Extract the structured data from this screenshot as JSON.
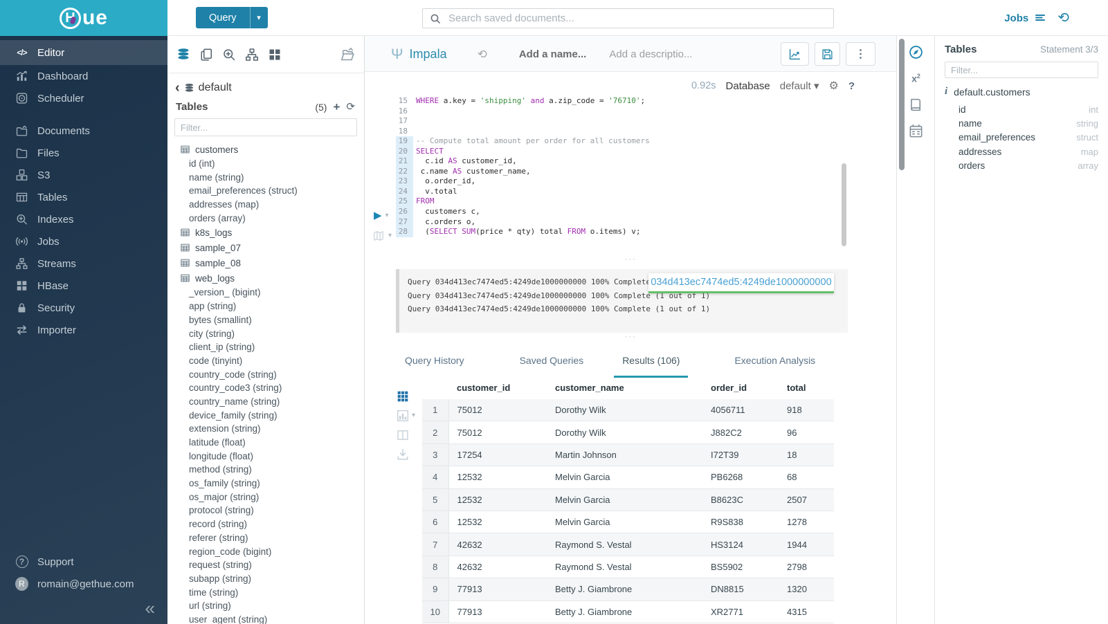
{
  "brand": {
    "logo_text": "ue"
  },
  "topbar": {
    "query_button": "Query",
    "search_placeholder": "Search saved documents...",
    "jobs_label": "Jobs"
  },
  "sidebar": {
    "items": [
      {
        "label": "Editor",
        "icon": "code-icon",
        "active": true
      },
      {
        "label": "Dashboard",
        "icon": "dashboard-icon"
      },
      {
        "label": "Scheduler",
        "icon": "scheduler-icon"
      },
      {
        "label": "Documents",
        "icon": "documents-icon",
        "group_start": true
      },
      {
        "label": "Files",
        "icon": "files-icon"
      },
      {
        "label": "S3",
        "icon": "s3-icon"
      },
      {
        "label": "Tables",
        "icon": "tables-icon"
      },
      {
        "label": "Indexes",
        "icon": "indexes-icon"
      },
      {
        "label": "Jobs",
        "icon": "jobs-icon"
      },
      {
        "label": "Streams",
        "icon": "streams-icon"
      },
      {
        "label": "HBase",
        "icon": "hbase-icon"
      },
      {
        "label": "Security",
        "icon": "security-icon"
      },
      {
        "label": "Importer",
        "icon": "importer-icon"
      }
    ],
    "footer": [
      {
        "label": "Support",
        "icon": "help-icon"
      },
      {
        "label": "romain@gethue.com",
        "icon": "avatar-icon"
      }
    ],
    "collapse_glyph": "«"
  },
  "left_assist": {
    "toolbar": [
      "database-icon",
      "copy-icon",
      "search-plus-icon",
      "sitemap-icon",
      "grid-icon"
    ],
    "toolbar_right": "folder-open-icon",
    "db_name": "default",
    "tables_label": "Tables",
    "table_count": "(5)",
    "filter_placeholder": "Filter...",
    "tree": [
      {
        "name": "customers",
        "columns": [
          "id (int)",
          "name (string)",
          "email_preferences (struct)",
          "addresses (map)",
          "orders (array)"
        ]
      },
      {
        "name": "k8s_logs",
        "columns": []
      },
      {
        "name": "sample_07",
        "columns": []
      },
      {
        "name": "sample_08",
        "columns": []
      },
      {
        "name": "web_logs",
        "columns": [
          "_version_ (bigint)",
          "app (string)",
          "bytes (smallint)",
          "city (string)",
          "client_ip (string)",
          "code (tinyint)",
          "country_code (string)",
          "country_code3 (string)",
          "country_name (string)",
          "device_family (string)",
          "extension (string)",
          "latitude (float)",
          "longitude (float)",
          "method (string)",
          "os_family (string)",
          "os_major (string)",
          "protocol (string)",
          "record (string)",
          "referer (string)",
          "region_code (bigint)",
          "request (string)",
          "subapp (string)",
          "time (string)",
          "url (string)",
          "user_agent (string)"
        ]
      }
    ]
  },
  "editor": {
    "engine": "Impala",
    "name_placeholder": "Add a name...",
    "description_placeholder": "Add a descriptio...",
    "buttons": [
      "chart-icon",
      "save-icon",
      "kebab-icon"
    ],
    "exec_time": "0.92s",
    "database_label": "Database",
    "database_value": "default",
    "highlight_from_line": 19,
    "code": [
      {
        "num": 15,
        "segs": [
          {
            "t": "WHERE",
            "c": "kw"
          },
          {
            "t": " a.key = "
          },
          {
            "t": "'shipping'",
            "c": "str"
          },
          {
            "t": " "
          },
          {
            "t": "and",
            "c": "kw"
          },
          {
            "t": " a.zip_code = "
          },
          {
            "t": "'76710'",
            "c": "str"
          },
          {
            "t": ";"
          }
        ]
      },
      {
        "num": 16,
        "segs": []
      },
      {
        "num": 17,
        "segs": []
      },
      {
        "num": 18,
        "segs": []
      },
      {
        "num": 19,
        "segs": [
          {
            "t": "-- Compute total amount per order for all customers",
            "c": "cmt"
          }
        ]
      },
      {
        "num": 20,
        "segs": [
          {
            "t": "SELECT",
            "c": "kw"
          }
        ]
      },
      {
        "num": 21,
        "segs": [
          {
            "t": "  c.id "
          },
          {
            "t": "AS",
            "c": "kw"
          },
          {
            "t": " customer_id,"
          }
        ]
      },
      {
        "num": 22,
        "segs": [
          {
            "t": " c.name "
          },
          {
            "t": "AS",
            "c": "kw"
          },
          {
            "t": " customer_name,"
          }
        ]
      },
      {
        "num": 23,
        "segs": [
          {
            "t": "  o.order_id,"
          }
        ]
      },
      {
        "num": 24,
        "segs": [
          {
            "t": "  v.total"
          }
        ]
      },
      {
        "num": 25,
        "segs": [
          {
            "t": "FROM",
            "c": "kw"
          }
        ]
      },
      {
        "num": 26,
        "segs": [
          {
            "t": "  customers c,"
          }
        ]
      },
      {
        "num": 27,
        "segs": [
          {
            "t": "  c.orders o,"
          }
        ]
      },
      {
        "num": 28,
        "segs": [
          {
            "t": "  ("
          },
          {
            "t": "SELECT",
            "c": "kw"
          },
          {
            "t": " "
          },
          {
            "t": "SUM",
            "c": "kw"
          },
          {
            "t": "(price * qty) total "
          },
          {
            "t": "FROM",
            "c": "kw"
          },
          {
            "t": " o.items) v;"
          }
        ]
      }
    ]
  },
  "log": {
    "lines": [
      "Query 034d413ec7474ed5:4249de1000000000 100% Complete (1 out of 1)",
      "Query 034d413ec7474ed5:4249de1000000000 100% Complete (1 out of 1)",
      "Query 034d413ec7474ed5:4249de1000000000 100% Complete (1 out of 1)"
    ],
    "tooltip": "034d413ec7474ed5:4249de1000000000"
  },
  "results_tabs": {
    "items": [
      "Query History",
      "Saved Queries",
      "Results (106)",
      "Execution Analysis"
    ],
    "active_index": 2
  },
  "results": {
    "strip_icons": [
      "grid9-icon",
      "bar-chart-icon",
      "columns-icon",
      "download-icon"
    ],
    "columns": [
      "customer_id",
      "customer_name",
      "order_id",
      "total"
    ],
    "rows": [
      [
        "1",
        "75012",
        "Dorothy Wilk",
        "4056711",
        "918"
      ],
      [
        "2",
        "75012",
        "Dorothy Wilk",
        "J882C2",
        "96"
      ],
      [
        "3",
        "17254",
        "Martin Johnson",
        "I72T39",
        "18"
      ],
      [
        "4",
        "12532",
        "Melvin Garcia",
        "PB6268",
        "68"
      ],
      [
        "5",
        "12532",
        "Melvin Garcia",
        "B8623C",
        "2507"
      ],
      [
        "6",
        "12532",
        "Melvin Garcia",
        "R9S838",
        "1278"
      ],
      [
        "7",
        "42632",
        "Raymond S. Vestal",
        "HS3124",
        "1944"
      ],
      [
        "8",
        "42632",
        "Raymond S. Vestal",
        "BS5902",
        "2798"
      ],
      [
        "9",
        "77913",
        "Betty J. Giambrone",
        "DN8815",
        "1320"
      ],
      [
        "10",
        "77913",
        "Betty J. Giambrone",
        "XR2771",
        "4315"
      ]
    ]
  },
  "right_rail": [
    "compass-icon",
    "superscript-icon",
    "book-icon",
    "calendar-icon"
  ],
  "right_assist": {
    "title": "Tables",
    "statement": "Statement 3/3",
    "filter_placeholder": "Filter...",
    "table_ref": "default.customers",
    "columns": [
      {
        "name": "id",
        "type": "int"
      },
      {
        "name": "name",
        "type": "string"
      },
      {
        "name": "email_preferences",
        "type": "struct"
      },
      {
        "name": "addresses",
        "type": "map"
      },
      {
        "name": "orders",
        "type": "array"
      }
    ]
  },
  "colors": {
    "brand_cyan": "#2BABC6",
    "primary_blue": "#1F81A8",
    "accent_teal": "#2499AE",
    "keyword_purple": "#A12EB0",
    "string_green": "#3A8E3F",
    "tooltip_underline_green": "#66BF67"
  }
}
